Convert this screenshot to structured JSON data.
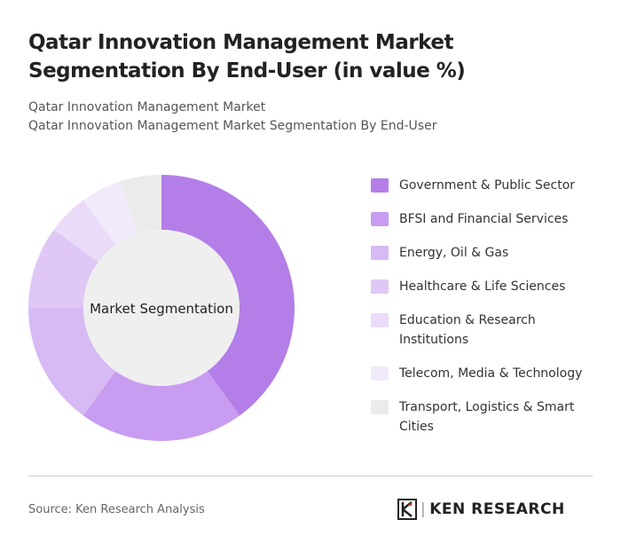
{
  "chart_data": {
    "type": "donut",
    "title": "Qatar Innovation Management Market Segmentation By End-User (in value %)",
    "subtitle": [
      "Qatar Innovation Management Market",
      "Qatar Innovation Management Market Segmentation By End-User"
    ],
    "center_label": "Market Segmentation",
    "categories": [
      "Government & Public Sector",
      "BFSI and Financial Services",
      "Energy, Oil & Gas",
      "Healthcare & Life Sciences",
      "Education & Research Institutions",
      "Telecom, Media & Technology",
      "Transport, Logistics & Smart Cities"
    ],
    "values": [
      40,
      20,
      15,
      10,
      5,
      5,
      5
    ],
    "colors": [
      "#b47ee8",
      "#c89cf0",
      "#d7b9f4",
      "#dfc8f5",
      "#eadbf8",
      "#f1eafb",
      "#ebebeb"
    ],
    "source": "Source: Ken Research Analysis",
    "brand": "KEN RESEARCH"
  }
}
